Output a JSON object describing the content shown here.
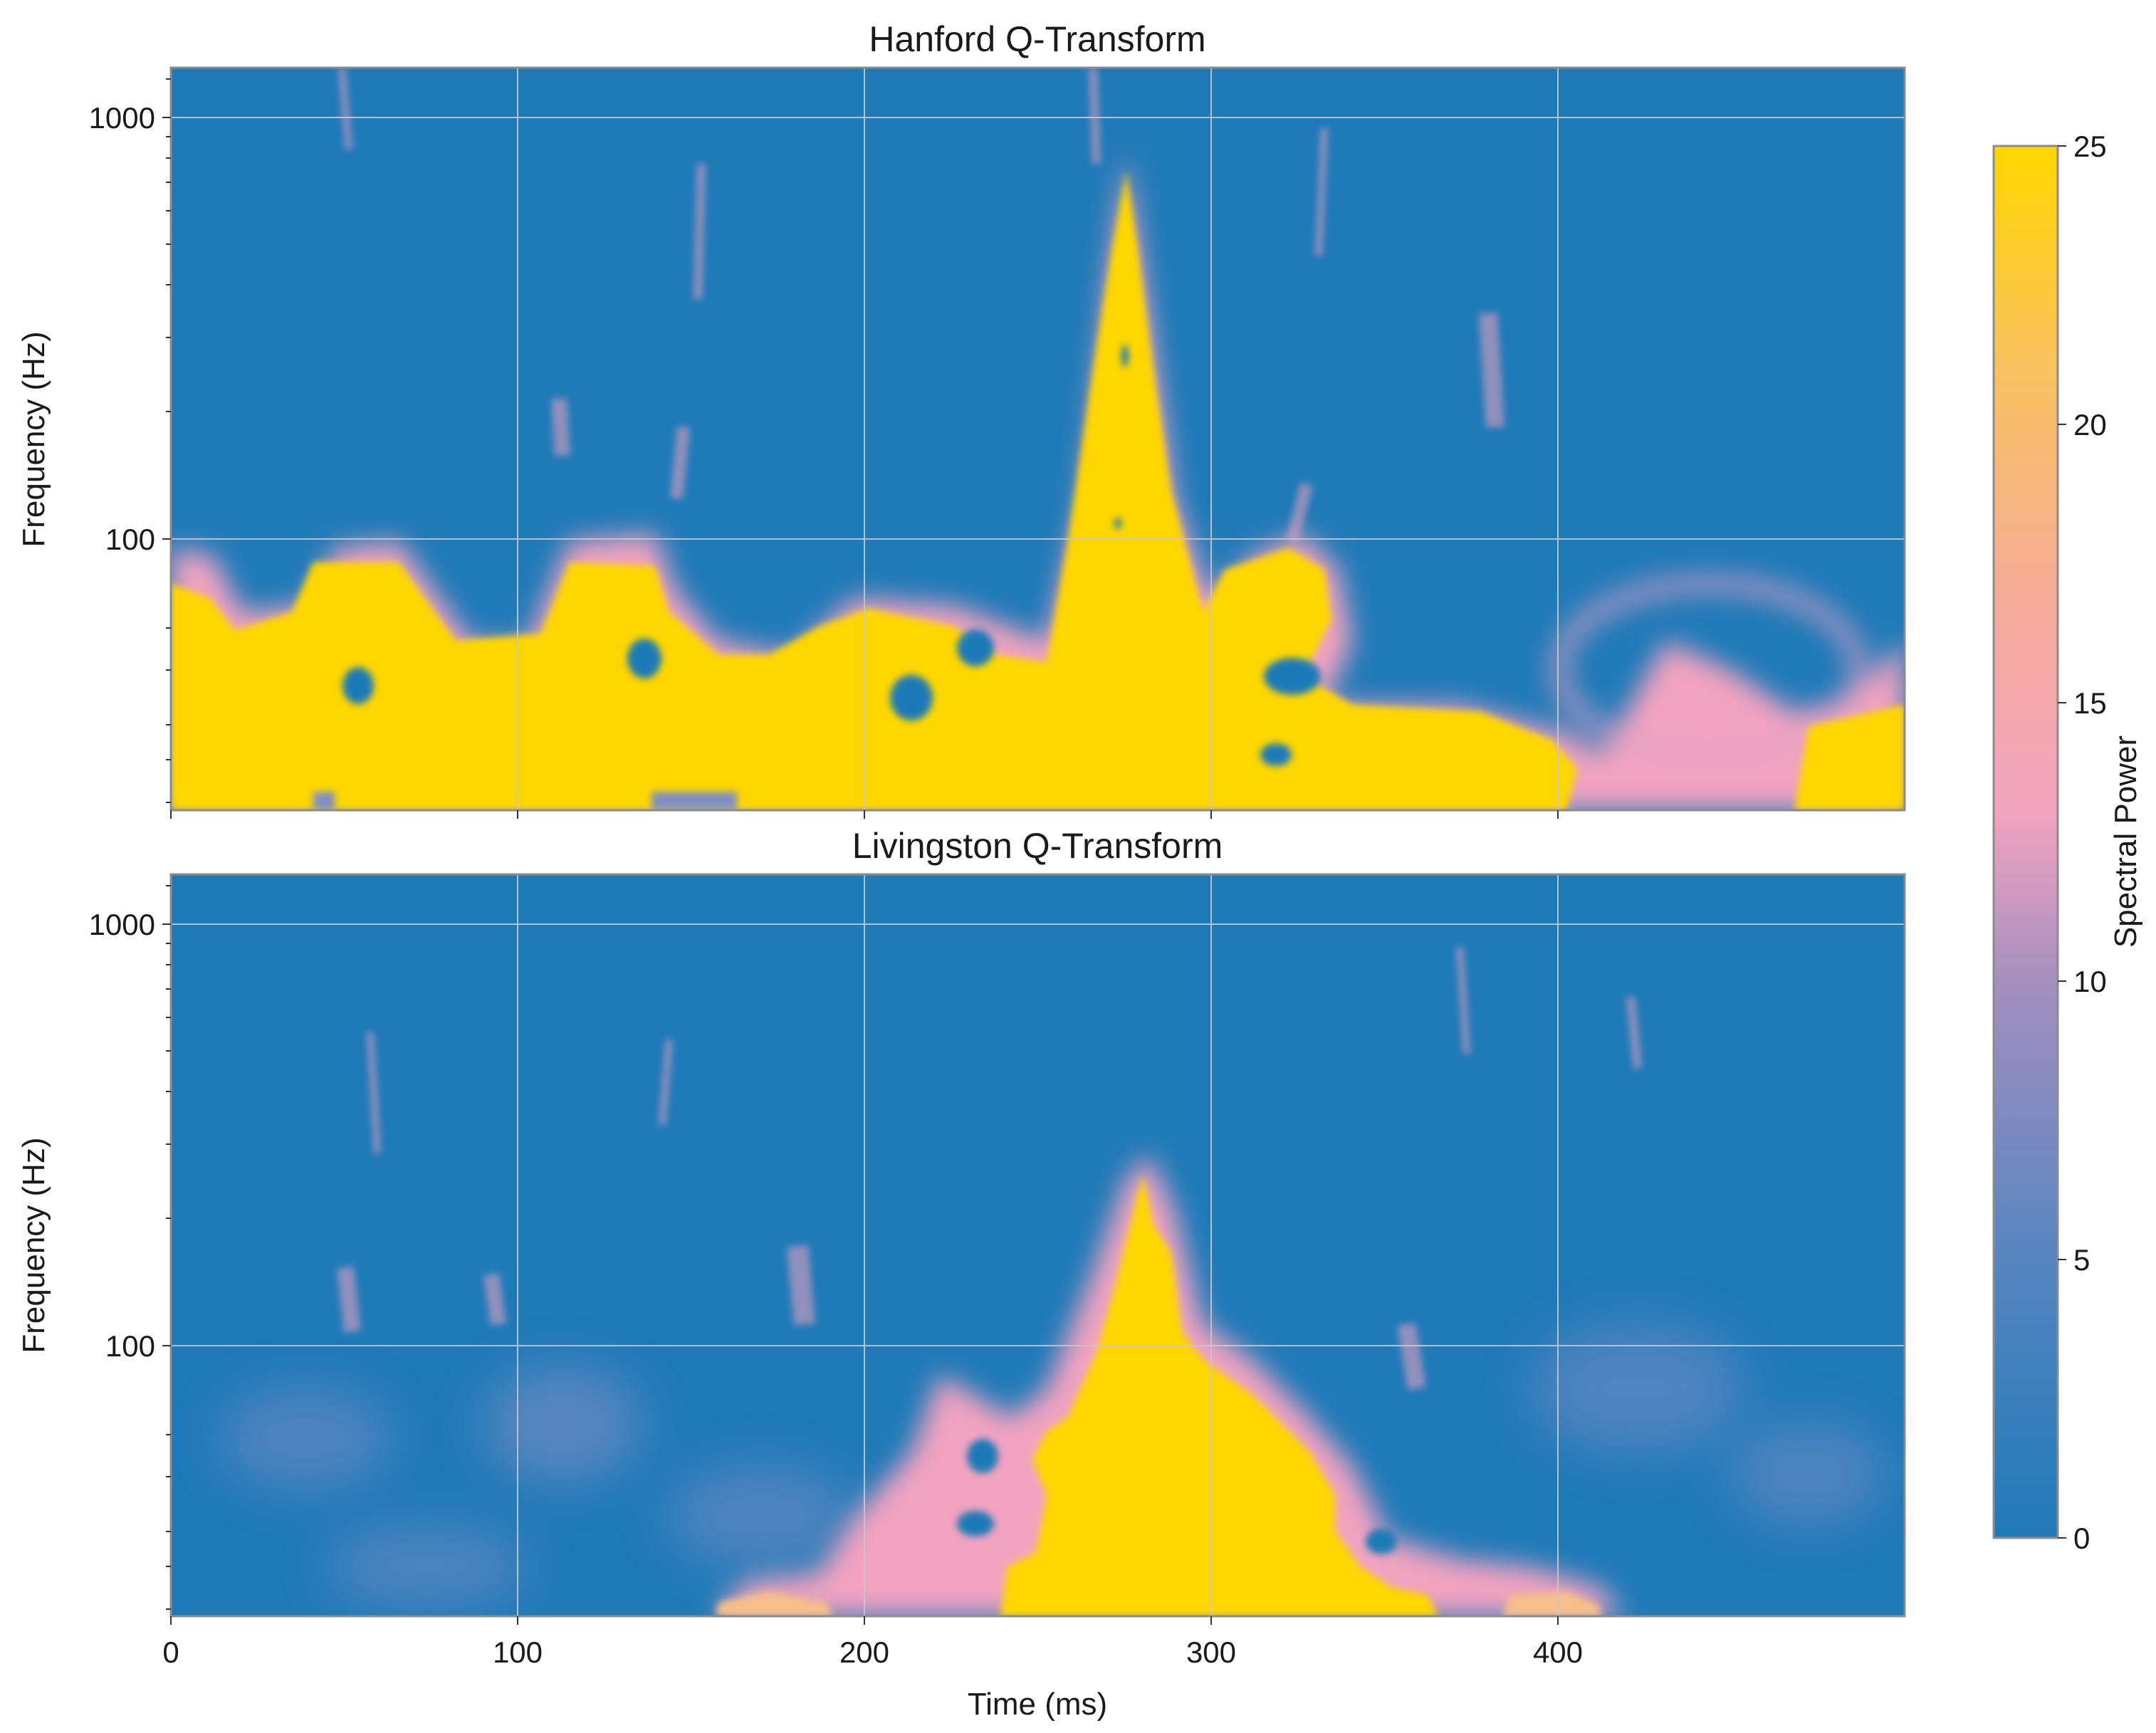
{
  "colors": {
    "background": "#ffffff",
    "axes_edge": "#8c8c8c",
    "grid": "#c8c8c8",
    "cmap_low": "#1f7ab8",
    "cmap_mid_low": "#7f8fc4",
    "cmap_mid": "#f2a3c0",
    "cmap_mid_high": "#f7b879",
    "cmap_high": "#ffd700"
  },
  "colorbar": {
    "label": "Spectral Power",
    "ticks": [
      "0",
      "5",
      "10",
      "15",
      "20",
      "25"
    ],
    "range": [
      0,
      25
    ]
  },
  "chart_data": [
    {
      "type": "heatmap",
      "title": "Hanford Q-Transform",
      "xlabel": "",
      "ylabel": "Frequency (Hz)",
      "yscale": "log",
      "xlim": [
        0,
        500
      ],
      "ylim": [
        20,
        1300
      ],
      "xticks": [
        0,
        100,
        200,
        300,
        400
      ],
      "xticklabels": [],
      "yticks": [
        100,
        1000
      ],
      "yticklabels": [
        "100",
        "1000"
      ],
      "grid": true,
      "color_range": [
        0,
        25
      ],
      "chirp_peak_time_ms": 278,
      "chirp_peak_frequency_hz": 700,
      "features": {
        "low_frequency_high_power_band": "0–400 ms below ~80 Hz",
        "chirp": "rising track from ~60 Hz at 250 ms to ~700 Hz at 278 ms"
      }
    },
    {
      "type": "heatmap",
      "title": "Livingston Q-Transform",
      "xlabel": "Time (ms)",
      "ylabel": "Frequency (Hz)",
      "yscale": "log",
      "xlim": [
        0,
        500
      ],
      "ylim": [
        20,
        1300
      ],
      "xticks": [
        0,
        100,
        200,
        300,
        400
      ],
      "xticklabels": [
        "0",
        "100",
        "200",
        "300",
        "400"
      ],
      "yticks": [
        100,
        1000
      ],
      "yticklabels": [
        "100",
        "1000"
      ],
      "grid": true,
      "color_range": [
        0,
        25
      ],
      "chirp_peak_time_ms": 279,
      "chirp_peak_frequency_hz": 260,
      "features": {
        "chirp": "triangular high-power region from ~205 ms to ~360 ms at 20 Hz, narrowing to ~260 Hz at 279 ms"
      }
    }
  ]
}
